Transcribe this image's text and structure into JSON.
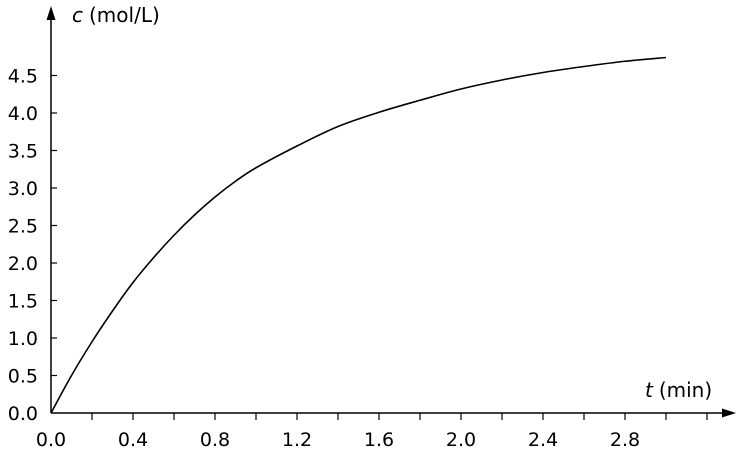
{
  "chart_data": {
    "type": "line",
    "xlabel": {
      "var": "t",
      "unit": "(min)"
    },
    "ylabel": {
      "var": "c",
      "unit": "(mol/L)"
    },
    "xlim": [
      0,
      3.4
    ],
    "ylim": [
      0,
      5.1
    ],
    "x_ticks": [
      0.0,
      0.4,
      0.8,
      1.2,
      1.6,
      2.0,
      2.4,
      2.8
    ],
    "x_minor_ticks": [
      0.2,
      0.6,
      1.0,
      1.4,
      1.8,
      2.2,
      2.6,
      3.0,
      3.2
    ],
    "x_tick_labels": [
      "0.0",
      "0.4",
      "0.8",
      "1.2",
      "1.6",
      "2.0",
      "2.4",
      "2.8"
    ],
    "y_ticks": [
      0.0,
      0.5,
      1.0,
      1.5,
      2.0,
      2.5,
      3.0,
      3.5,
      4.0,
      4.5
    ],
    "y_tick_labels": [
      "0.0",
      "0.5",
      "1.0",
      "1.5",
      "2.0",
      "2.5",
      "3.0",
      "3.5",
      "4.0",
      "4.5"
    ],
    "grid": false,
    "series": [
      {
        "x": [
          0.0,
          0.1,
          0.2,
          0.3,
          0.4,
          0.5,
          0.6,
          0.7,
          0.8,
          0.9,
          1.0,
          1.2,
          1.4,
          1.6,
          1.8,
          2.0,
          2.2,
          2.4,
          2.6,
          2.8,
          3.0
        ],
        "y": [
          0.0,
          0.5,
          0.95,
          1.36,
          1.74,
          2.07,
          2.37,
          2.64,
          2.88,
          3.09,
          3.27,
          3.56,
          3.82,
          4.01,
          4.17,
          4.32,
          4.44,
          4.54,
          4.62,
          4.69,
          4.74
        ]
      }
    ]
  }
}
